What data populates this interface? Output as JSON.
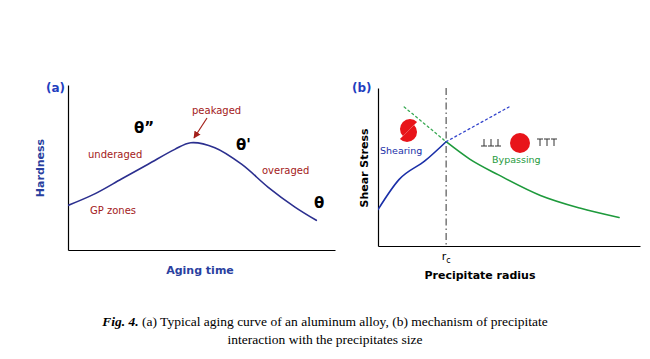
{
  "chart_data": [
    {
      "type": "line",
      "panel_label": "(a)",
      "x_label": "Aging time",
      "y_label": "Hardness",
      "xlim": [
        0,
        10
      ],
      "ylim": [
        0,
        10
      ],
      "tick_labels": false,
      "series": [
        {
          "color": "#2b2f8f",
          "line_style": "solid",
          "x": [
            0,
            1,
            2,
            3,
            4,
            4.6,
            5.5,
            6.5,
            7.5,
            8.5,
            9.3
          ],
          "values": [
            2.7,
            3.4,
            4.3,
            5.2,
            6.1,
            6.5,
            6.2,
            5.2,
            3.8,
            2.6,
            1.8
          ]
        }
      ],
      "annotations": [
        {
          "text": "GP zones",
          "color": "#a3201a"
        },
        {
          "text": "underaged",
          "color": "#a3201a"
        },
        {
          "text": "θ”",
          "color": "#000000"
        },
        {
          "text": "peakaged",
          "color": "#a3201a"
        },
        {
          "text": "θ'",
          "color": "#000000"
        },
        {
          "text": "overaged",
          "color": "#a3201a"
        },
        {
          "text": "θ",
          "color": "#000000"
        }
      ]
    },
    {
      "type": "line",
      "panel_label": "(b)",
      "x_label": "Precipitate radius",
      "y_label": "Shear Stress",
      "xlim": [
        0,
        10
      ],
      "ylim": [
        0,
        10
      ],
      "tick_labels": false,
      "series": [
        {
          "color": "#1a2fa8",
          "line_style": "solid",
          "x": [
            0,
            0.8,
            1.8,
            2.6
          ],
          "values": [
            2.3,
            4.2,
            5.4,
            6.6
          ]
        },
        {
          "color": "#1e9a3c",
          "line_style": "solid",
          "x": [
            2.6,
            3.5,
            4.6,
            6.2,
            7.7,
            9.2
          ],
          "values": [
            6.6,
            5.5,
            4.5,
            3.2,
            2.4,
            1.8
          ]
        },
        {
          "color": "#3aaa55",
          "line_style": "dotted",
          "x": [
            1.0,
            2.6
          ],
          "values": [
            8.8,
            6.6
          ]
        },
        {
          "color": "#3344cc",
          "line_style": "dotted",
          "x": [
            2.6,
            5.0
          ],
          "values": [
            6.6,
            8.8
          ]
        }
      ],
      "reference_lines": [
        {
          "x": 2.6,
          "label": "r",
          "label_subscript": "c",
          "line_style": "dashdot"
        }
      ],
      "annotations": [
        {
          "text": "Shearing",
          "color": "#1a2fa8"
        },
        {
          "text": "Bypassing",
          "color": "#1e9a3c"
        }
      ]
    }
  ],
  "caption": {
    "label": "Fig. 4.",
    "text": "(a) Typical aging curve of an aluminum alloy, (b) mechanism of precipitate interaction with the precipitates size"
  }
}
